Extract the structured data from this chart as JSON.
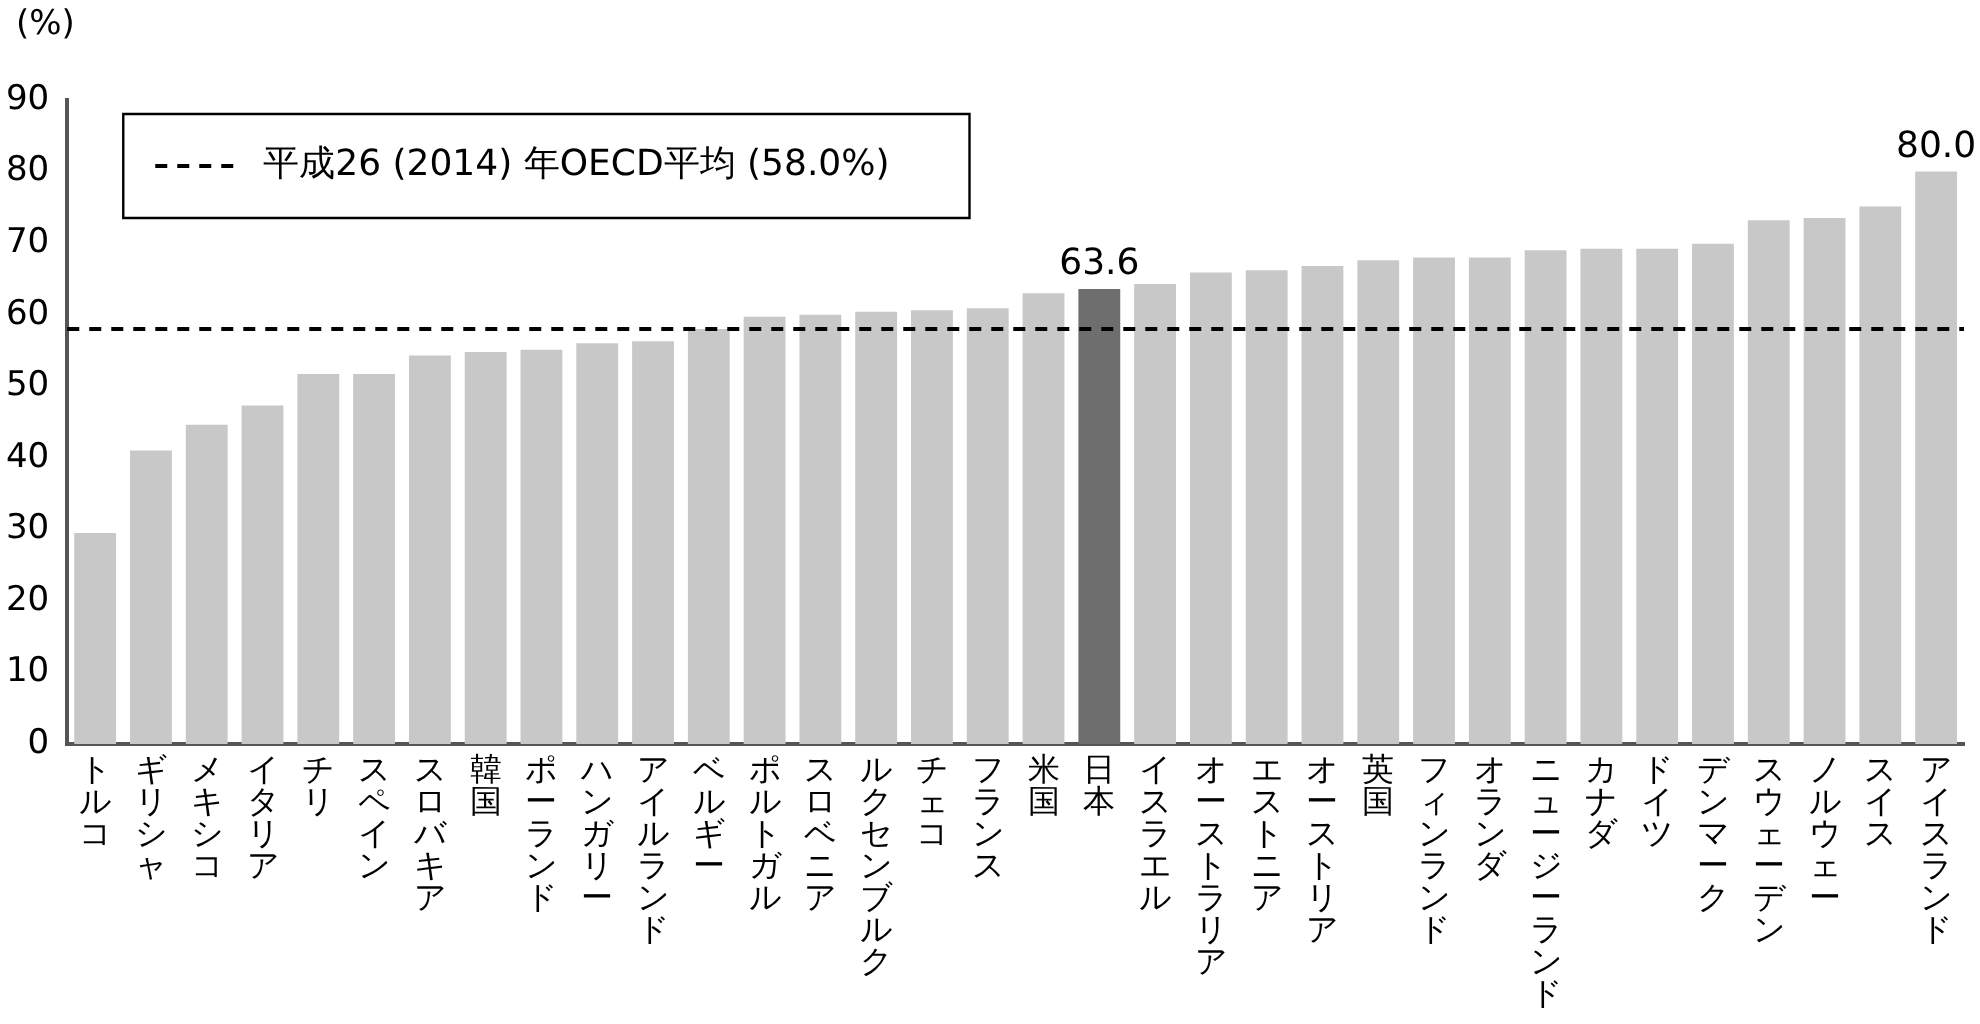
{
  "chart_data": {
    "type": "bar",
    "ylabel": "(%)",
    "categories": [
      "トルコ",
      "ギリシャ",
      "メキシコ",
      "イタリア",
      "チリ",
      "スペイン",
      "スロバキア",
      "韓国",
      "ポーランド",
      "ハンガリー",
      "アイルランド",
      "ベルギー",
      "ポルトガル",
      "スロベニア",
      "ルクセンブルク",
      "チェコ",
      "フランス",
      "米国",
      "日本",
      "イスラエル",
      "オーストラリア",
      "エストニア",
      "オーストリア",
      "英国",
      "フィンランド",
      "オランダ",
      "ニュージーランド",
      "カナダ",
      "ドイツ",
      "デンマーク",
      "スウェーデン",
      "ノルウェー",
      "スイス",
      "アイスランド"
    ],
    "values": [
      29.5,
      41.0,
      44.6,
      47.3,
      51.7,
      51.7,
      54.3,
      54.8,
      55.1,
      56.0,
      56.3,
      58.0,
      59.7,
      60.0,
      60.4,
      60.6,
      60.9,
      63.0,
      63.6,
      64.3,
      65.9,
      66.2,
      66.8,
      67.6,
      68.0,
      68.0,
      69.0,
      69.2,
      69.2,
      69.9,
      73.2,
      73.5,
      75.1,
      80.0
    ],
    "colors": [
      "#c8c8c8",
      "#c8c8c8",
      "#c8c8c8",
      "#c8c8c8",
      "#c8c8c8",
      "#c8c8c8",
      "#c8c8c8",
      "#c8c8c8",
      "#c8c8c8",
      "#c8c8c8",
      "#c8c8c8",
      "#c8c8c8",
      "#c8c8c8",
      "#c8c8c8",
      "#c8c8c8",
      "#c8c8c8",
      "#c8c8c8",
      "#c8c8c8",
      "#6e6e6e",
      "#c8c8c8",
      "#c8c8c8",
      "#c8c8c8",
      "#c8c8c8",
      "#c8c8c8",
      "#c8c8c8",
      "#c8c8c8",
      "#c8c8c8",
      "#c8c8c8",
      "#c8c8c8",
      "#c8c8c8",
      "#c8c8c8",
      "#c8c8c8",
      "#c8c8c8",
      "#c8c8c8"
    ],
    "value_labels": [
      null,
      null,
      null,
      null,
      null,
      null,
      null,
      null,
      null,
      null,
      null,
      null,
      null,
      null,
      null,
      null,
      null,
      null,
      "63.6",
      null,
      null,
      null,
      null,
      null,
      null,
      null,
      null,
      null,
      null,
      null,
      null,
      null,
      null,
      "80.0"
    ],
    "ylim": [
      0,
      90
    ],
    "yticks": [
      0,
      10,
      20,
      30,
      40,
      50,
      60,
      70,
      80,
      90
    ],
    "grid": false,
    "ref_lines": [
      {
        "axis": "y",
        "value": 58.0,
        "label": "平成26 (2014) 年OECD平均 (58.0%)",
        "color": "#000000",
        "line_style": "dashed"
      }
    ]
  }
}
